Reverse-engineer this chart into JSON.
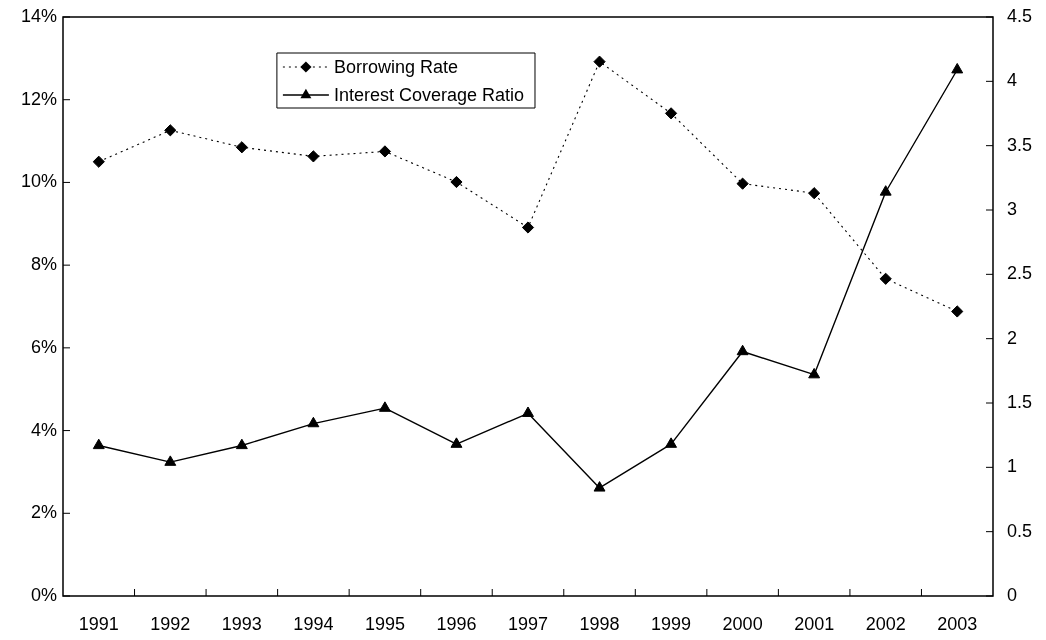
{
  "chart_data": {
    "type": "line",
    "categories": [
      "1991",
      "1992",
      "1993",
      "1994",
      "1995",
      "1996",
      "1997",
      "1998",
      "1999",
      "2000",
      "2001",
      "2002",
      "2003"
    ],
    "series": [
      {
        "name": "Borrowing Rate",
        "color": "#000000",
        "marker": "diamond",
        "line_style": "dotted",
        "values": [
          10.5,
          11.26,
          10.85,
          10.63,
          10.75,
          10.01,
          8.91,
          12.92,
          11.67,
          9.97,
          9.74,
          7.67,
          6.88
        ]
      },
      {
        "name": "Interest Coverage Ratio",
        "color": "#000000",
        "marker": "triangle",
        "line_style": "solid",
        "axis": "y2",
        "values": [
          1.17,
          1.04,
          1.17,
          1.34,
          1.46,
          1.18,
          1.42,
          0.84,
          1.18,
          1.9,
          1.72,
          3.14,
          4.09
        ]
      }
    ],
    "ylim": [
      0,
      14
    ],
    "yticks": [
      {
        "value": 0,
        "label": "0%"
      },
      {
        "value": 2,
        "label": "2%"
      },
      {
        "value": 4,
        "label": "4%"
      },
      {
        "value": 6,
        "label": "6%"
      },
      {
        "value": 8,
        "label": "8%"
      },
      {
        "value": 10,
        "label": "10%"
      },
      {
        "value": 12,
        "label": "12%"
      },
      {
        "value": 14,
        "label": "14%"
      }
    ],
    "y2lim": [
      0,
      4.5
    ],
    "y2ticks": [
      0,
      0.5,
      1,
      1.5,
      2,
      2.5,
      3,
      3.5,
      4,
      4.5
    ],
    "grid": false,
    "legend": "top"
  }
}
